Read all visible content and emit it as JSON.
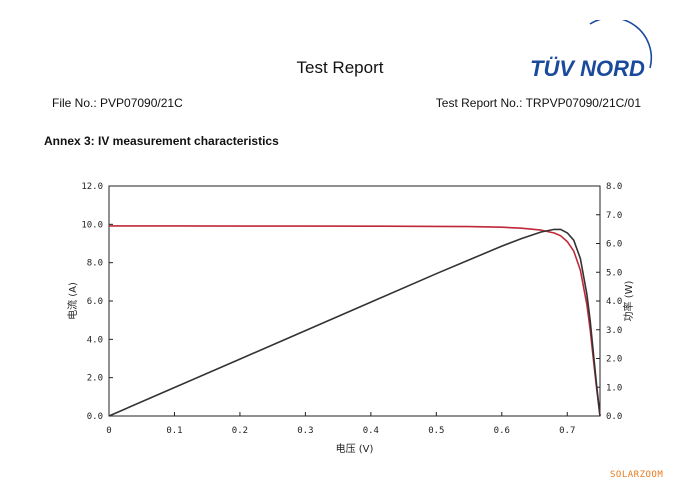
{
  "header": {
    "title": "Test Report",
    "logo_text": "TÜV NORD",
    "file_no": "File No.: PVP07090/21C",
    "report_no": "Test Report No.: TRPVP07090/21C/01"
  },
  "annex_title": "Annex 3: IV measurement characteristics",
  "watermark": "SOLARZOOM",
  "colors": {
    "logo_blue": "#1a4a9c",
    "current_curve": "#c0283a",
    "power_curve": "#333333",
    "watermark": "#e87a1e"
  },
  "chart_data": {
    "type": "line",
    "xlabel": "电压 (V)",
    "ylabel_left": "电流 (A)",
    "ylabel_right": "功率 (W)",
    "x_ticks": [
      "0",
      "0.1",
      "0.2",
      "0.3",
      "0.4",
      "0.5",
      "0.6",
      "0.7"
    ],
    "y_left_ticks": [
      "0.0",
      "2.0",
      "4.0",
      "6.0",
      "8.0",
      "10.0",
      "12.0"
    ],
    "y_right_ticks": [
      "0.0",
      "1.0",
      "2.0",
      "3.0",
      "4.0",
      "5.0",
      "6.0",
      "7.0",
      "8.0"
    ],
    "xlim": [
      0,
      0.75
    ],
    "ylim_left": [
      0,
      12
    ],
    "ylim_right": [
      0,
      8
    ],
    "grid": false,
    "series": [
      {
        "axis": "left",
        "x": [
          0,
          0.1,
          0.2,
          0.3,
          0.4,
          0.5,
          0.55,
          0.6,
          0.63,
          0.66,
          0.68,
          0.69,
          0.7,
          0.71,
          0.72,
          0.73,
          0.735,
          0.74,
          0.745,
          0.75
        ],
        "y": [
          9.92,
          9.92,
          9.91,
          9.91,
          9.9,
          9.89,
          9.88,
          9.85,
          9.8,
          9.7,
          9.55,
          9.4,
          9.1,
          8.6,
          7.6,
          5.8,
          4.5,
          2.9,
          1.4,
          0.0
        ]
      },
      {
        "axis": "right",
        "x": [
          0,
          0.1,
          0.2,
          0.3,
          0.4,
          0.5,
          0.55,
          0.6,
          0.63,
          0.66,
          0.68,
          0.69,
          0.7,
          0.71,
          0.72,
          0.73,
          0.735,
          0.74,
          0.745,
          0.75
        ],
        "y": [
          0.0,
          0.99,
          1.98,
          2.97,
          3.96,
          4.95,
          5.43,
          5.91,
          6.17,
          6.4,
          6.49,
          6.49,
          6.37,
          6.11,
          5.47,
          4.23,
          3.31,
          2.15,
          1.04,
          0.0
        ]
      }
    ]
  }
}
